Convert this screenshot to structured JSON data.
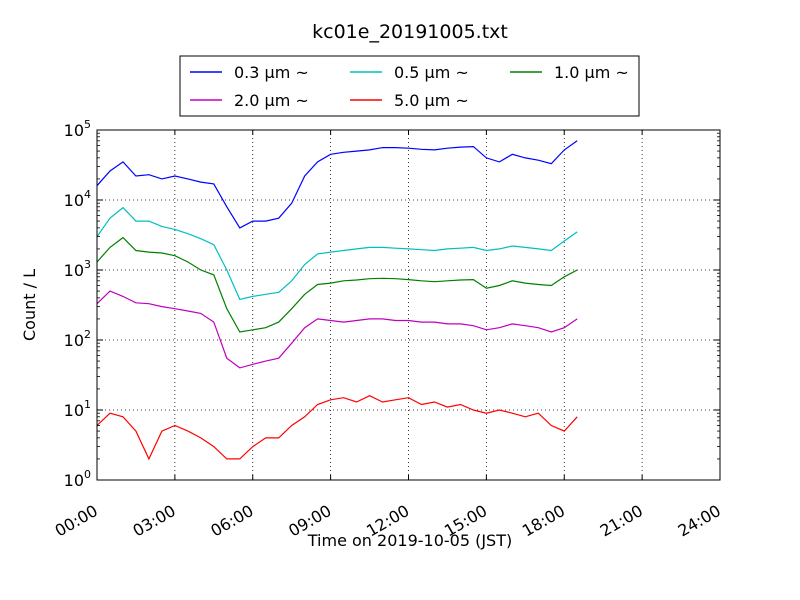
{
  "chart_data": {
    "type": "line",
    "title": "kc01e_20191005.txt",
    "xlabel": "Time on 2019-10-05 (JST)",
    "ylabel": "Count / L",
    "x_unit": "hour of day",
    "xlim": [
      0,
      24
    ],
    "ylim": [
      1,
      100000
    ],
    "y_scale": "log",
    "grid": true,
    "legend_position": "top",
    "x_tick_labels": [
      "00:00",
      "03:00",
      "06:00",
      "09:00",
      "12:00",
      "15:00",
      "18:00",
      "21:00",
      "24:00"
    ],
    "y_tick_labels": [
      {
        "base": "10",
        "exp": "0"
      },
      {
        "base": "10",
        "exp": "1"
      },
      {
        "base": "10",
        "exp": "2"
      },
      {
        "base": "10",
        "exp": "3"
      },
      {
        "base": "10",
        "exp": "4"
      },
      {
        "base": "10",
        "exp": "5"
      }
    ],
    "x": [
      0.0,
      0.5,
      1.0,
      1.5,
      2.0,
      2.5,
      3.0,
      3.5,
      4.0,
      4.5,
      5.0,
      5.5,
      6.0,
      6.5,
      7.0,
      7.5,
      8.0,
      8.5,
      9.0,
      9.5,
      10.0,
      10.5,
      11.0,
      11.5,
      12.0,
      12.5,
      13.0,
      13.5,
      14.0,
      14.5,
      15.0,
      15.5,
      16.0,
      16.5,
      17.0,
      17.5,
      18.0,
      18.5
    ],
    "series": [
      {
        "name": "0.3 μm  ~",
        "color": "#0000ff",
        "values": [
          16000,
          26000,
          35000,
          22000,
          23000,
          20000,
          22000,
          20000,
          18000,
          17000,
          8000,
          4000,
          5000,
          5000,
          5500,
          9000,
          22000,
          35000,
          45000,
          48000,
          50000,
          52000,
          56000,
          56000,
          55000,
          53000,
          52000,
          55000,
          57000,
          58000,
          40000,
          35000,
          45000,
          40000,
          37000,
          33000,
          52000,
          70000
        ]
      },
      {
        "name": "0.5 μm  ~",
        "color": "#00bfbf",
        "values": [
          3000,
          5500,
          7800,
          5000,
          5000,
          4200,
          3800,
          3300,
          2800,
          2300,
          1000,
          380,
          420,
          450,
          480,
          700,
          1200,
          1700,
          1800,
          1900,
          2000,
          2100,
          2100,
          2050,
          2000,
          1950,
          1900,
          2000,
          2050,
          2100,
          1900,
          2000,
          2200,
          2100,
          2000,
          1900,
          2600,
          3500
        ]
      },
      {
        "name": "1.0 μm  ~",
        "color": "#008000",
        "values": [
          1300,
          2100,
          2900,
          1900,
          1800,
          1750,
          1600,
          1300,
          1000,
          850,
          280,
          130,
          140,
          150,
          180,
          280,
          450,
          620,
          650,
          700,
          720,
          750,
          760,
          750,
          730,
          700,
          680,
          700,
          720,
          730,
          550,
          600,
          700,
          650,
          620,
          600,
          800,
          1000
        ]
      },
      {
        "name": "2.0 μm  ~",
        "color": "#bf00bf",
        "values": [
          330,
          500,
          420,
          340,
          330,
          300,
          280,
          260,
          240,
          180,
          55,
          40,
          45,
          50,
          55,
          90,
          150,
          200,
          190,
          180,
          190,
          200,
          200,
          190,
          190,
          180,
          180,
          170,
          170,
          160,
          140,
          150,
          170,
          160,
          150,
          130,
          150,
          200
        ]
      },
      {
        "name": "5.0 μm  ~",
        "color": "#ff0000",
        "values": [
          6,
          9,
          8,
          5,
          2,
          5,
          6,
          5,
          4,
          3,
          2,
          2,
          3,
          4,
          4,
          6,
          8,
          12,
          14,
          15,
          13,
          16,
          13,
          14,
          15,
          12,
          13,
          11,
          12,
          10,
          9,
          10,
          9,
          8,
          9,
          6,
          5,
          8
        ]
      }
    ]
  }
}
